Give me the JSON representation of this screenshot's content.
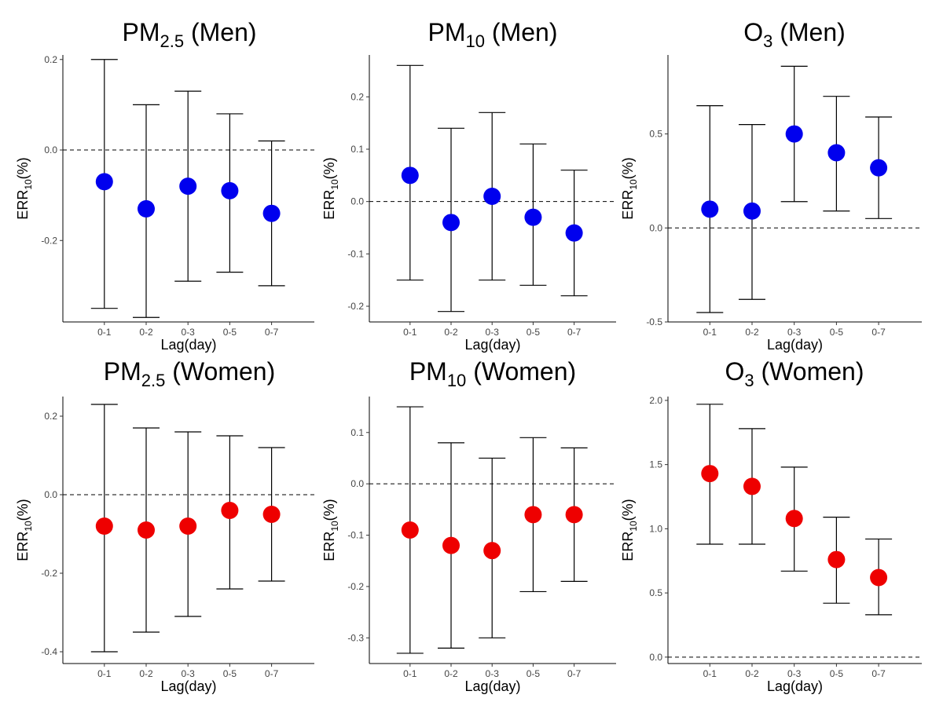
{
  "chart_data": [
    {
      "type": "scatter",
      "pollutant": "PM",
      "sub": "2.5",
      "group": "(Men)",
      "xlabel": "Lag(day)",
      "ylabel": {
        "main": "ERR",
        "sub": "10",
        "suffix": "(%)"
      },
      "categories": [
        "0-1",
        "0-2",
        "0-3",
        "0-5",
        "0-7"
      ],
      "estimate": [
        -0.07,
        -0.13,
        -0.08,
        -0.09,
        -0.14
      ],
      "lower": [
        -0.35,
        -0.37,
        -0.29,
        -0.27,
        -0.3
      ],
      "upper": [
        0.2,
        0.1,
        0.13,
        0.08,
        0.02
      ],
      "ylim": [
        -0.38,
        0.21
      ],
      "yticks": [
        0.2,
        0.0,
        -0.2
      ],
      "ytick_labels": [
        "0.2",
        "0.0",
        "-0.2"
      ],
      "reference_line": 0.0,
      "point_color": "#0000ee"
    },
    {
      "type": "scatter",
      "pollutant": "PM",
      "sub": "10",
      "group": "(Men)",
      "xlabel": "Lag(day)",
      "ylabel": {
        "main": "ERR",
        "sub": "10",
        "suffix": "(%)"
      },
      "categories": [
        "0-1",
        "0-2",
        "0-3",
        "0-5",
        "0-7"
      ],
      "estimate": [
        0.05,
        -0.04,
        0.01,
        -0.03,
        -0.06
      ],
      "lower": [
        -0.15,
        -0.21,
        -0.15,
        -0.16,
        -0.18
      ],
      "upper": [
        0.26,
        0.14,
        0.17,
        0.11,
        0.06
      ],
      "ylim": [
        -0.23,
        0.28
      ],
      "yticks": [
        0.2,
        0.1,
        0.0,
        -0.1,
        -0.2
      ],
      "ytick_labels": [
        "0.2",
        "0.1",
        "0.0",
        "-0.1",
        "-0.2"
      ],
      "reference_line": 0.0,
      "point_color": "#0000ee"
    },
    {
      "type": "scatter",
      "pollutant": "O",
      "sub": "3",
      "group": "(Men)",
      "xlabel": "Lag(day)",
      "ylabel": {
        "main": "ERR",
        "sub": "10",
        "suffix": "(%)"
      },
      "categories": [
        "0-1",
        "0-2",
        "0-3",
        "0-5",
        "0-7"
      ],
      "estimate": [
        0.1,
        0.09,
        0.5,
        0.4,
        0.32
      ],
      "lower": [
        -0.45,
        -0.38,
        0.14,
        0.09,
        0.05
      ],
      "upper": [
        0.65,
        0.55,
        0.86,
        0.7,
        0.59
      ],
      "ylim": [
        -0.5,
        0.92
      ],
      "yticks": [
        0.5,
        0.0,
        -0.5
      ],
      "ytick_labels": [
        "0.5",
        "0.0",
        "-0.5"
      ],
      "reference_line": 0.0,
      "point_color": "#0000ee"
    },
    {
      "type": "scatter",
      "pollutant": "PM",
      "sub": "2.5",
      "group": "(Women)",
      "xlabel": "Lag(day)",
      "ylabel": {
        "main": "ERR",
        "sub": "10",
        "suffix": "(%)"
      },
      "categories": [
        "0-1",
        "0-2",
        "0-3",
        "0-5",
        "0-7"
      ],
      "estimate": [
        -0.08,
        -0.09,
        -0.08,
        -0.04,
        -0.05
      ],
      "lower": [
        -0.4,
        -0.35,
        -0.31,
        -0.24,
        -0.22
      ],
      "upper": [
        0.23,
        0.17,
        0.16,
        0.15,
        0.12
      ],
      "ylim": [
        -0.43,
        0.25
      ],
      "yticks": [
        0.2,
        0.0,
        -0.2,
        -0.4
      ],
      "ytick_labels": [
        "0.2",
        "0.0",
        "-0.2",
        "-0.4"
      ],
      "reference_line": 0.0,
      "point_color": "#ee0000"
    },
    {
      "type": "scatter",
      "pollutant": "PM",
      "sub": "10",
      "group": "(Women)",
      "xlabel": "Lag(day)",
      "ylabel": {
        "main": "ERR",
        "sub": "10",
        "suffix": "(%)"
      },
      "categories": [
        "0-1",
        "0-2",
        "0-3",
        "0-5",
        "0-7"
      ],
      "estimate": [
        -0.09,
        -0.12,
        -0.13,
        -0.06,
        -0.06
      ],
      "lower": [
        -0.33,
        -0.32,
        -0.3,
        -0.21,
        -0.19
      ],
      "upper": [
        0.15,
        0.08,
        0.05,
        0.09,
        0.07
      ],
      "ylim": [
        -0.35,
        0.17
      ],
      "yticks": [
        0.1,
        0.0,
        -0.1,
        -0.2,
        -0.3
      ],
      "ytick_labels": [
        "0.1",
        "0.0",
        "-0.1",
        "-0.2",
        "-0.3"
      ],
      "reference_line": 0.0,
      "point_color": "#ee0000"
    },
    {
      "type": "scatter",
      "pollutant": "O",
      "sub": "3",
      "group": "(Women)",
      "xlabel": "Lag(day)",
      "ylabel": {
        "main": "ERR",
        "sub": "10",
        "suffix": "(%)"
      },
      "categories": [
        "0-1",
        "0-2",
        "0-3",
        "0-5",
        "0-7"
      ],
      "estimate": [
        1.43,
        1.33,
        1.08,
        0.76,
        0.62
      ],
      "lower": [
        0.88,
        0.88,
        0.67,
        0.42,
        0.33
      ],
      "upper": [
        1.97,
        1.78,
        1.48,
        1.09,
        0.92
      ],
      "ylim": [
        -0.05,
        2.03
      ],
      "yticks": [
        2.0,
        1.5,
        1.0,
        0.5,
        0.0
      ],
      "ytick_labels": [
        "2.0",
        "1.5",
        "1.0",
        "0.5",
        "0.0"
      ],
      "reference_line": 0.0,
      "point_color": "#ee0000"
    }
  ]
}
